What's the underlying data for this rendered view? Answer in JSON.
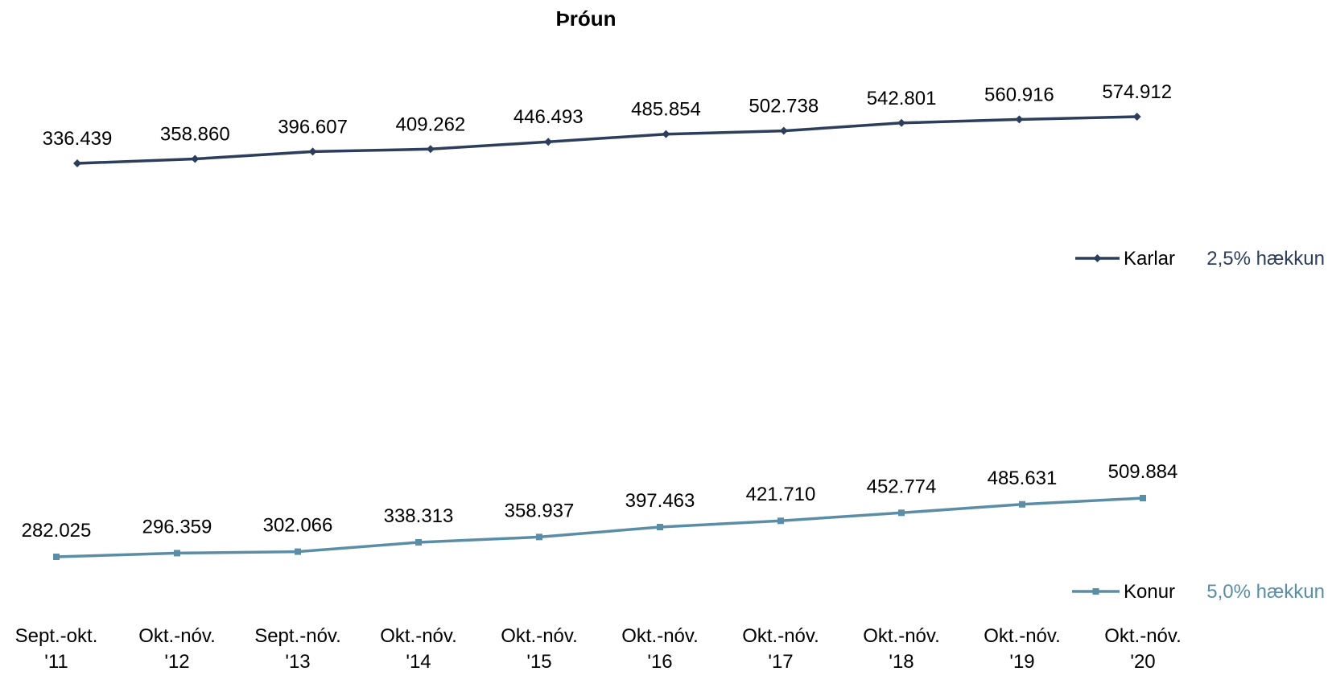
{
  "chart_data": {
    "type": "line",
    "title": "Þróun",
    "xlabel": "",
    "ylabel": "",
    "grid": false,
    "legend_position": "right",
    "categories": [
      [
        "Sept.-okt.",
        "'11"
      ],
      [
        "Okt.-nóv.",
        "'12"
      ],
      [
        "Sept.-nóv.",
        "'13"
      ],
      [
        "Okt.-nóv.",
        "'14"
      ],
      [
        "Okt.-nóv.",
        "'15"
      ],
      [
        "Okt.-nóv.",
        "'16"
      ],
      [
        "Okt.-nóv.",
        "'17"
      ],
      [
        "Okt.-nóv.",
        "'18"
      ],
      [
        "Okt.-nóv.",
        "'19"
      ],
      [
        "Okt.-nóv.",
        "'20"
      ]
    ],
    "series": [
      {
        "name": "Karlar",
        "note": "2,5% hækkun",
        "color": "#2c3e5c",
        "marker": "diamond",
        "values": [
          336439,
          358860,
          396607,
          409262,
          446493,
          485854,
          502738,
          542801,
          560916,
          574912
        ],
        "labels": [
          "336.439",
          "358.860",
          "396.607",
          "409.262",
          "446.493",
          "485.854",
          "502.738",
          "542.801",
          "560.916",
          "574.912"
        ]
      },
      {
        "name": "Konur",
        "note": "5,0% hækkun",
        "color": "#5b8ea6",
        "marker": "square",
        "values": [
          282025,
          296359,
          302066,
          338313,
          358937,
          397463,
          421710,
          452774,
          485631,
          509884
        ],
        "labels": [
          "282.025",
          "296.359",
          "302.066",
          "338.313",
          "358.937",
          "397.463",
          "421.710",
          "452.774",
          "485.631",
          "509.884"
        ]
      }
    ]
  }
}
